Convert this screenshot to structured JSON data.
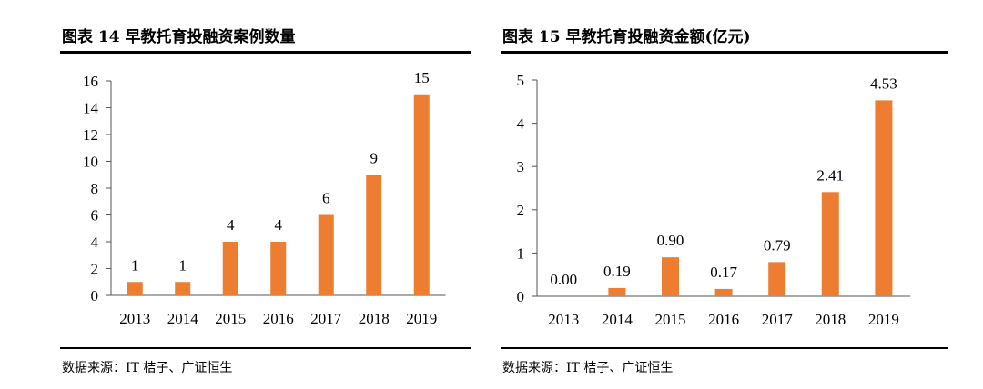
{
  "charts": [
    {
      "title": "图表 14 早教托育投融资案例数量",
      "source": "数据来源：IT 桔子、广证恒生"
    },
    {
      "title": "图表 15 早教托育投融资金额(亿元)",
      "source": "数据来源：IT 桔子、广证恒生"
    }
  ],
  "chart_data": [
    {
      "type": "bar",
      "title": "图表 14 早教托育投融资案例数量",
      "categories": [
        "2013",
        "2014",
        "2015",
        "2016",
        "2017",
        "2018",
        "2019"
      ],
      "values": [
        1,
        1,
        4,
        4,
        6,
        9,
        15
      ],
      "data_labels": [
        "1",
        "1",
        "4",
        "4",
        "6",
        "9",
        "15"
      ],
      "ylim": [
        0,
        16
      ],
      "yticks": [
        0,
        2,
        4,
        6,
        8,
        10,
        12,
        14,
        16
      ],
      "color": "#ED7D31",
      "grid": false
    },
    {
      "type": "bar",
      "title": "图表 15 早教托育投融资金额(亿元)",
      "categories": [
        "2013",
        "2014",
        "2015",
        "2016",
        "2017",
        "2018",
        "2019"
      ],
      "values": [
        0.0,
        0.19,
        0.9,
        0.17,
        0.79,
        2.41,
        4.53
      ],
      "data_labels": [
        "0.00",
        "0.19",
        "0.90",
        "0.17",
        "0.79",
        "2.41",
        "4.53"
      ],
      "ylim": [
        0,
        5
      ],
      "yticks": [
        0,
        1,
        2,
        3,
        4,
        5
      ],
      "color": "#ED7D31",
      "grid": false
    }
  ]
}
